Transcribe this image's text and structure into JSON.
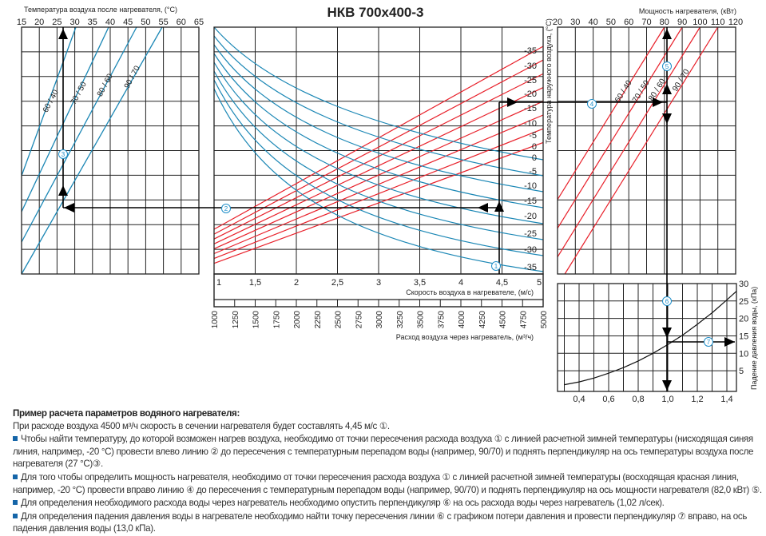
{
  "title": "НКВ 700x400-3",
  "left_chart": {
    "axis_title": "Температура воздуха после нагревателя, (°С)",
    "ticks": [
      "15",
      "20",
      "25",
      "30",
      "35",
      "40",
      "45",
      "50",
      "55",
      "60",
      "65"
    ],
    "curves": [
      "60 / 40",
      "70 / 50",
      "80 / 60",
      "90 / 70"
    ]
  },
  "center_chart": {
    "red_labels": [
      "-35",
      "-30",
      "-25",
      "-20",
      "-15",
      "-10",
      "-5",
      "0"
    ],
    "blue_labels": [
      "0",
      "-5",
      "-10",
      "-15",
      "-20",
      "-25",
      "-30",
      "-35"
    ],
    "speed_ticks": [
      "1",
      "1,5",
      "2",
      "2,5",
      "3",
      "3,5",
      "4",
      "4,5",
      "5"
    ],
    "speed_title": "Скорость воздуха в нагревателе, (м/с)",
    "flow_ticks": [
      "1000",
      "1250",
      "1500",
      "1750",
      "2000",
      "2250",
      "2500",
      "2750",
      "3000",
      "3250",
      "3500",
      "3750",
      "4000",
      "4250",
      "4500",
      "4750",
      "5000"
    ],
    "flow_title": "Расход воздуха через нагреватель, (м³/ч)"
  },
  "right_chart": {
    "axis_title": "Мощность нагревателя, (кВт)",
    "ticks": [
      "20",
      "30",
      "40",
      "50",
      "60",
      "70",
      "80",
      "90",
      "100",
      "110",
      "120"
    ],
    "y_title": "Температура наружного воздуха, (°С)",
    "curves": [
      "60 / 40",
      "70 / 50",
      "80 / 60",
      "90 / 70"
    ]
  },
  "pressure_chart": {
    "x_ticks": [
      "0,4",
      "0,6",
      "0,8",
      "1,0",
      "1,2",
      "1,4"
    ],
    "y_ticks": [
      "5",
      "10",
      "15",
      "20",
      "25",
      "30"
    ],
    "x_title": "Расход воды через нагреватель, (л/сек)",
    "y_title": "Падение давления воды, (кПа)"
  },
  "markers": [
    "1",
    "2",
    "3",
    "4",
    "5",
    "6",
    "7"
  ],
  "colors": {
    "blue": "#1b87b5",
    "red": "#e8202a",
    "grid": "#222222",
    "marker": "#1e8ec9"
  },
  "example": {
    "title": "Пример расчета параметров водяного нагревателя:",
    "intro": "При расходе воздуха 4500 м³/ч скорость в сечении нагревателя будет составлять 4,45 м/с ①.",
    "steps": [
      "Чтобы найти температуру, до которой возможен нагрев воздуха, необходимо от точки пересечения расхода воздуха ① с линией расчетной зимней температуры (нисходящая синяя линия, например, -20 °С) провести влево линию ② до пересечения с температурным перепадом воды (например, 90/70) и поднять перпендикуляр на ось температуры воздуха после нагревателя (27 °С)③.",
      "Для того чтобы определить мощность нагревателя, необходимо от точки пересечения расхода воздуха ① с линией расчетной зимней температуры (восходящая красная линия, например, -20 °С) провести вправо линию ④ до пересечения с температурным перепадом воды (например, 90/70) и поднять перпендикуляр на ось мощности нагревателя (82,0 кВт) ⑤.",
      "Для определения необходимого расхода воды через нагреватель необходимо опустить перпендикуляр ⑥ на ось расхода воды через нагреватель (1,02 л/сек).",
      "Для определения падения давления воды в нагревателе необходимо найти точку пересечения линии ⑥ с графиком потери давления и провести перпендикуляр ⑦ вправо, на ось падения давления воды (13,0 кПа)."
    ]
  },
  "chart_data": [
    {
      "type": "line",
      "title": "Температура воздуха после нагревателя",
      "xlabel": "Температура воздуха после нагревателя, (°С)",
      "xlim": [
        15,
        65
      ],
      "series": [
        {
          "name": "60 / 40"
        },
        {
          "name": "70 / 50"
        },
        {
          "name": "80 / 60"
        },
        {
          "name": "90 / 70"
        }
      ],
      "example_reading": {
        "water": "90/70",
        "outdoor_temp": -20,
        "air_temp_after": 27
      }
    },
    {
      "type": "line",
      "title": "НКВ 700x400-3",
      "xlabel": "Скорость воздуха в нагревателе, (м/с)",
      "xlim": [
        1,
        5
      ],
      "x2label": "Расход воздуха через нагреватель, (м³/ч)",
      "x2lim": [
        1000,
        5000
      ],
      "series_red_outdoor_temps": [
        -35,
        -30,
        -25,
        -20,
        -15,
        -10,
        -5,
        0
      ],
      "series_blue_outdoor_temps": [
        0,
        -5,
        -10,
        -15,
        -20,
        -25,
        -30,
        -35
      ],
      "example_reading": {
        "air_flow": 4500,
        "air_speed": 4.45
      }
    },
    {
      "type": "line",
      "title": "Мощность нагревателя",
      "xlabel": "Мощность нагревателя, (кВт)",
      "ylabel": "Температура наружного воздуха, (°С)",
      "xlim": [
        20,
        120
      ],
      "series": [
        {
          "name": "60 / 40",
          "power_at_top": 80
        },
        {
          "name": "70 / 50",
          "power_at_top": 90
        },
        {
          "name": "80 / 60",
          "power_at_top": 100
        },
        {
          "name": "90 / 70",
          "power_at_top": 110
        }
      ],
      "example_reading": {
        "water": "90/70",
        "outdoor_temp": -20,
        "power": 82.0
      }
    },
    {
      "type": "line",
      "title": "Падение давления воды",
      "xlabel": "Расход воды через нагреватель, (л/сек)",
      "ylabel": "Падение давления воды, (кПа)",
      "xlim": [
        0.25,
        1.465
      ],
      "ylim": [
        0,
        30
      ],
      "x": [
        0.3,
        0.4,
        0.5,
        0.6,
        0.7,
        0.8,
        0.9,
        1.0,
        1.1,
        1.2,
        1.3,
        1.4,
        1.465
      ],
      "y": [
        1.0,
        1.8,
        2.9,
        4.3,
        5.9,
        7.8,
        10.0,
        12.5,
        15.2,
        18.3,
        21.6,
        25.3,
        27.8
      ],
      "example_reading": {
        "water_flow": 1.02,
        "pressure_drop": 13.0
      }
    }
  ]
}
